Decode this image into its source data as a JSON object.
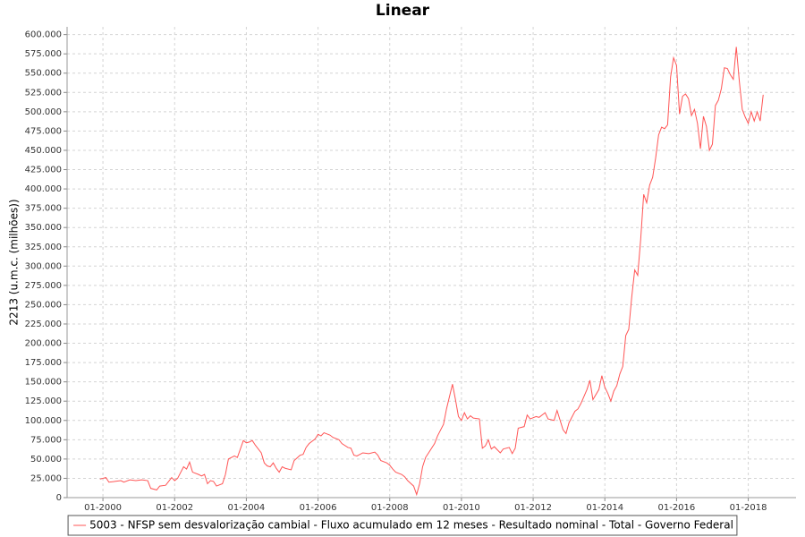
{
  "chart_data": {
    "type": "line",
    "title": "Linear",
    "y_label": "2213 (u.m.c. (milhões))",
    "x": [
      "1999-12",
      "2000-02",
      "2000-03",
      "2000-05",
      "2000-07",
      "2000-08",
      "2000-10",
      "2000-12",
      "2001-02",
      "2001-04",
      "2001-05",
      "2001-07",
      "2001-08",
      "2001-10",
      "2001-12",
      "2002-01",
      "2002-02",
      "2002-04",
      "2002-05",
      "2002-06",
      "2002-07",
      "2002-09",
      "2002-10",
      "2002-11",
      "2002-12",
      "2003-01",
      "2003-02",
      "2003-03",
      "2003-05",
      "2003-06",
      "2003-07",
      "2003-09",
      "2003-10",
      "2003-12",
      "2004-01",
      "2004-02",
      "2004-03",
      "2004-04",
      "2004-06",
      "2004-07",
      "2004-08",
      "2004-09",
      "2004-10",
      "2004-11",
      "2004-12",
      "2005-01",
      "2005-02",
      "2005-04",
      "2005-05",
      "2005-07",
      "2005-08",
      "2005-09",
      "2005-10",
      "2005-12",
      "2006-01",
      "2006-02",
      "2006-03",
      "2006-05",
      "2006-06",
      "2006-08",
      "2006-09",
      "2006-11",
      "2006-12",
      "2007-01",
      "2007-02",
      "2007-04",
      "2007-06",
      "2007-08",
      "2007-09",
      "2007-10",
      "2007-12",
      "2008-01",
      "2008-02",
      "2008-03",
      "2008-05",
      "2008-06",
      "2008-07",
      "2008-09",
      "2008-10",
      "2008-11",
      "2008-12",
      "2009-01",
      "2009-02",
      "2009-04",
      "2009-05",
      "2009-07",
      "2009-08",
      "2009-10",
      "2009-11",
      "2009-12",
      "2010-01",
      "2010-02",
      "2010-03",
      "2010-04",
      "2010-05",
      "2010-07",
      "2010-08",
      "2010-09",
      "2010-10",
      "2010-11",
      "2010-12",
      "2011-02",
      "2011-03",
      "2011-05",
      "2011-06",
      "2011-07",
      "2011-08",
      "2011-10",
      "2011-11",
      "2011-12",
      "2012-02",
      "2012-03",
      "2012-05",
      "2012-06",
      "2012-08",
      "2012-09",
      "2012-11",
      "2012-12",
      "2013-01",
      "2013-03",
      "2013-04",
      "2013-05",
      "2013-07",
      "2013-08",
      "2013-09",
      "2013-11",
      "2013-12",
      "2014-01",
      "2014-02",
      "2014-03",
      "2014-04",
      "2014-05",
      "2014-06",
      "2014-07",
      "2014-08",
      "2014-09",
      "2014-10",
      "2014-11",
      "2014-12",
      "2015-01",
      "2015-02",
      "2015-03",
      "2015-04",
      "2015-05",
      "2015-06",
      "2015-07",
      "2015-08",
      "2015-09",
      "2015-10",
      "2015-11",
      "2015-12",
      "2016-01",
      "2016-02",
      "2016-03",
      "2016-04",
      "2016-05",
      "2016-06",
      "2016-07",
      "2016-08",
      "2016-09",
      "2016-10",
      "2016-11",
      "2016-12",
      "2017-01",
      "2017-02",
      "2017-03",
      "2017-04",
      "2017-05",
      "2017-06",
      "2017-07",
      "2017-08",
      "2017-09",
      "2017-10",
      "2017-11",
      "2017-12",
      "2018-01",
      "2018-02",
      "2018-03",
      "2018-04",
      "2018-05",
      "2018-06"
    ],
    "series": [
      {
        "name": "5003 - NFSP sem desvalorização cambial - Fluxo acumulado em 12 meses - Resultado nominal - Total - Governo Federal",
        "color": "#ff5555",
        "values": [
          24000,
          26000,
          20000,
          21000,
          22000,
          20000,
          23000,
          22000,
          23000,
          22000,
          12000,
          10000,
          15000,
          16000,
          26000,
          22000,
          25000,
          40000,
          37000,
          46000,
          33000,
          30000,
          28000,
          30000,
          18000,
          22000,
          21000,
          15000,
          18000,
          30000,
          50000,
          54000,
          52000,
          74000,
          71000,
          72000,
          74000,
          68000,
          58000,
          45000,
          41000,
          40000,
          45000,
          38000,
          33000,
          40000,
          38000,
          36000,
          48000,
          55000,
          56000,
          65000,
          70000,
          76000,
          82000,
          80000,
          84000,
          81000,
          78000,
          75000,
          70000,
          65000,
          64000,
          55000,
          54000,
          58000,
          57000,
          59000,
          55000,
          48000,
          45000,
          42000,
          37000,
          33000,
          30000,
          27000,
          22000,
          15000,
          4000,
          18000,
          40000,
          52000,
          58000,
          70000,
          80000,
          95000,
          115000,
          147000,
          127000,
          105000,
          100000,
          110000,
          102000,
          106000,
          103000,
          102000,
          64000,
          67000,
          75000,
          63000,
          66000,
          58000,
          63000,
          65000,
          57000,
          64000,
          90000,
          92000,
          107000,
          102000,
          105000,
          104000,
          110000,
          102000,
          100000,
          113000,
          88000,
          83000,
          97000,
          112000,
          115000,
          122000,
          140000,
          152000,
          127000,
          140000,
          158000,
          143000,
          135000,
          125000,
          138000,
          145000,
          160000,
          170000,
          210000,
          218000,
          260000,
          295000,
          288000,
          335000,
          393000,
          382000,
          405000,
          415000,
          440000,
          470000,
          480000,
          478000,
          483000,
          545000,
          570000,
          560000,
          497000,
          520000,
          523000,
          517000,
          495000,
          503000,
          485000,
          452000,
          494000,
          481000,
          450000,
          458000,
          508000,
          515000,
          530000,
          557000,
          556000,
          548000,
          542000,
          584000,
          540000,
          503000,
          493000,
          485000,
          500000,
          488000,
          500000,
          488000,
          522000
        ]
      }
    ],
    "xlim": [
      "1999-01",
      "2019-05"
    ],
    "xticks": [
      {
        "value": "2000-01",
        "label": "01-2000"
      },
      {
        "value": "2002-01",
        "label": "01-2002"
      },
      {
        "value": "2004-01",
        "label": "01-2004"
      },
      {
        "value": "2006-01",
        "label": "01-2006"
      },
      {
        "value": "2008-01",
        "label": "01-2008"
      },
      {
        "value": "2010-01",
        "label": "01-2010"
      },
      {
        "value": "2012-01",
        "label": "01-2012"
      },
      {
        "value": "2014-01",
        "label": "01-2014"
      },
      {
        "value": "2016-01",
        "label": "01-2016"
      },
      {
        "value": "2018-01",
        "label": "01-2018"
      }
    ],
    "ylim": [
      0,
      610000
    ],
    "yticks": [
      0,
      {
        "value": 25000,
        "label": "25.000"
      },
      {
        "value": 50000,
        "label": "50.000"
      },
      {
        "value": 75000,
        "label": "75.000"
      },
      {
        "value": 100000,
        "label": "100.000"
      },
      {
        "value": 125000,
        "label": "125.000"
      },
      {
        "value": 150000,
        "label": "150.000"
      },
      {
        "value": 175000,
        "label": "175.000"
      },
      {
        "value": 200000,
        "label": "200.000"
      },
      {
        "value": 225000,
        "label": "225.000"
      },
      {
        "value": 250000,
        "label": "250.000"
      },
      {
        "value": 275000,
        "label": "275.000"
      },
      {
        "value": 300000,
        "label": "300.000"
      },
      {
        "value": 325000,
        "label": "325.000"
      },
      {
        "value": 350000,
        "label": "350.000"
      },
      {
        "value": 375000,
        "label": "375.000"
      },
      {
        "value": 400000,
        "label": "400.000"
      },
      {
        "value": 425000,
        "label": "425.000"
      },
      {
        "value": 450000,
        "label": "450.000"
      },
      {
        "value": 475000,
        "label": "475.000"
      },
      {
        "value": 500000,
        "label": "500.000"
      },
      {
        "value": 525000,
        "label": "525.000"
      },
      {
        "value": 550000,
        "label": "550.000"
      },
      {
        "value": 575000,
        "label": "575.000"
      },
      {
        "value": 600000,
        "label": "600.000"
      }
    ],
    "grid": true,
    "legend": "bottom"
  }
}
